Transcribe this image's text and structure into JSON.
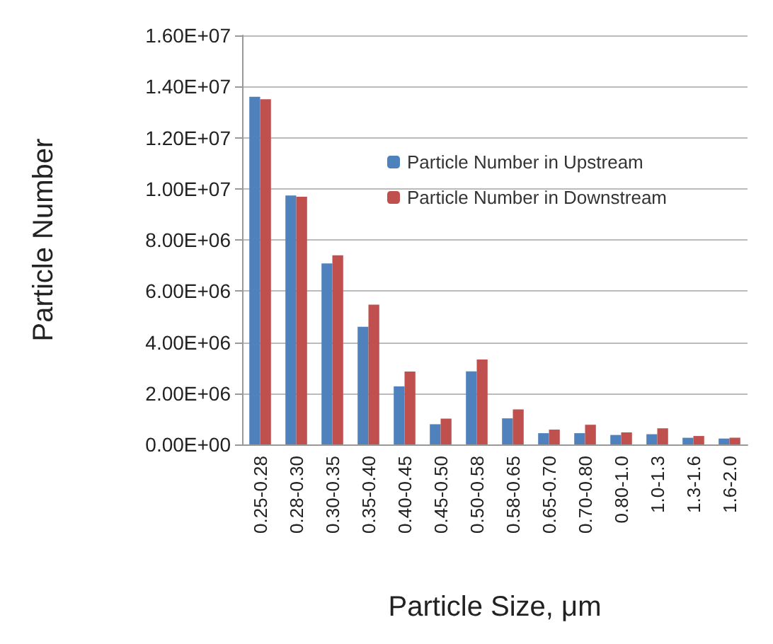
{
  "chart_data": {
    "type": "bar",
    "xlabel": "Particle Size, μm",
    "ylabel": "Particle Number",
    "categories": [
      "0.25-0.28",
      "0.28-0.30",
      "0.30-0.35",
      "0.35-0.40",
      "0.40-0.45",
      "0.45-0.50",
      "0.50-0.58",
      "0.58-0.65",
      "0.65-0.70",
      "0.70-0.80",
      "0.80-1.0",
      "1.0-1.3",
      "1.3-1.6",
      "1.6-2.0"
    ],
    "series": [
      {
        "name": "Particle Number in Upstream",
        "color": "#4f81bd",
        "values": [
          13600000,
          9740000,
          7080000,
          4600000,
          2270000,
          790000,
          2860000,
          1020000,
          440000,
          440000,
          370000,
          400000,
          260000,
          230000
        ]
      },
      {
        "name": "Particle Number in Downstream",
        "color": "#c0504d",
        "values": [
          13500000,
          9690000,
          7400000,
          5470000,
          2850000,
          1010000,
          3320000,
          1370000,
          580000,
          770000,
          470000,
          630000,
          330000,
          260000
        ]
      }
    ],
    "ylim": [
      0,
      16000000
    ],
    "yticks": [
      {
        "value": 0,
        "label": "0.00E+00"
      },
      {
        "value": 2000000,
        "label": "2.00E+06"
      },
      {
        "value": 4000000,
        "label": "4.00E+06"
      },
      {
        "value": 6000000,
        "label": "6.00E+06"
      },
      {
        "value": 8000000,
        "label": "8.00E+06"
      },
      {
        "value": 10000000,
        "label": "1.00E+07"
      },
      {
        "value": 12000000,
        "label": "1.20E+07"
      },
      {
        "value": 14000000,
        "label": "1.40E+07"
      },
      {
        "value": 16000000,
        "label": "1.60E+07"
      }
    ],
    "grid": "y",
    "legend": "top right"
  }
}
